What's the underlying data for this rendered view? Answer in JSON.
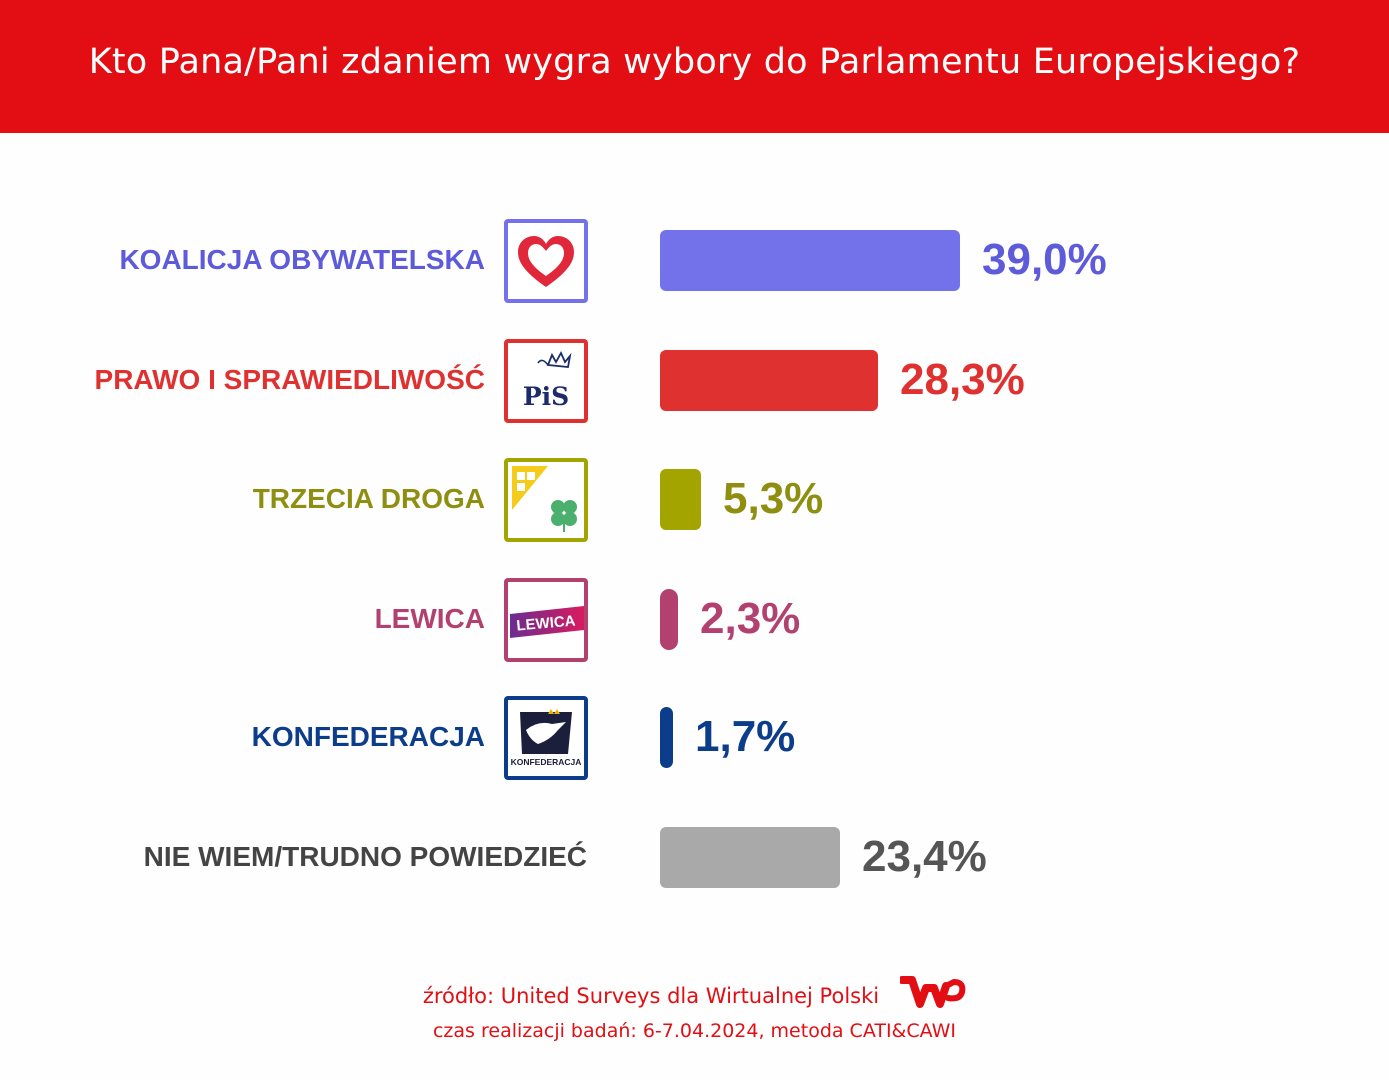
{
  "title": "Kto Pana/Pani zdaniem wygra wybory do Parlamentu Europejskiego?",
  "chart_data": {
    "type": "bar",
    "orientation": "horizontal",
    "categories": [
      "KOALICJA OBYWATELSKA",
      "PRAWO I SPRAWIEDLIWOŚĆ",
      "TRZECIA DROGA",
      "LEWICA",
      "KONFEDERACJA",
      "NIE WIEM/TRUDNO POWIEDZIEĆ"
    ],
    "values": [
      39.0,
      28.3,
      5.3,
      2.3,
      1.7,
      23.4
    ],
    "value_labels": [
      "39,0%",
      "28,3%",
      "5,3%",
      "2,3%",
      "1,7%",
      "23,4%"
    ],
    "colors": [
      "#7372ea",
      "#e03131",
      "#a3a400",
      "#b3416f",
      "#0c3d8b",
      "#a9a9a9"
    ],
    "value_colors": [
      "#5d5bd9",
      "#e03131",
      "#8e8f10",
      "#b3416f",
      "#0c3d8b",
      "#555555"
    ],
    "label_colors": [
      "#5d5bd9",
      "#e03131",
      "#8e8f10",
      "#b3416f",
      "#0c3d8b",
      "#444444"
    ],
    "logos": [
      "heart-icon",
      "pis-logo",
      "trzecia-droga-logo",
      "lewica-logo",
      "konfederacja-logo",
      ""
    ],
    "logo_texts": [
      "",
      "PiS",
      "",
      "LEWICA",
      "KONFEDERACJA",
      ""
    ],
    "xlim": [
      0,
      39.0
    ],
    "grid": false,
    "legend": "none"
  },
  "footer": {
    "source": "źródło: United Surveys dla Wirtualnej Polski",
    "dates": "czas realizacji badań: 6-7.04.2024, metoda CATI&CAWI"
  },
  "colors": {
    "header_bg": "#e30e13",
    "footer_text": "#e30e13"
  }
}
